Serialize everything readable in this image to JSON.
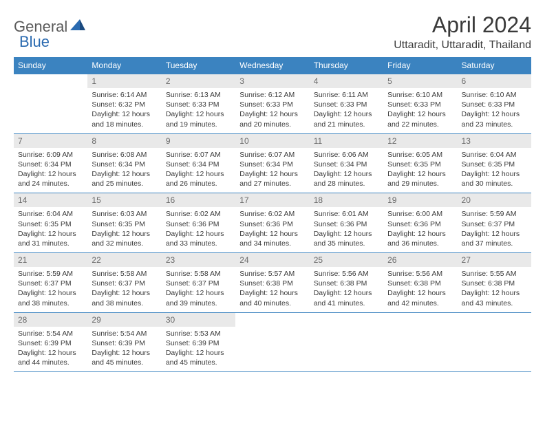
{
  "logo": {
    "text1": "General",
    "text2": "Blue"
  },
  "title": "April 2024",
  "location": "Uttaradit, Uttaradit, Thailand",
  "colors": {
    "header_bg": "#3b83c0",
    "header_text": "#ffffff",
    "daynum_bg": "#e9e9e9",
    "daynum_text": "#6a6a6a",
    "body_text": "#3a3a3a",
    "border": "#3b83c0",
    "logo_gray": "#5a5a5a",
    "logo_blue": "#2a6ab0"
  },
  "weekdays": [
    "Sunday",
    "Monday",
    "Tuesday",
    "Wednesday",
    "Thursday",
    "Friday",
    "Saturday"
  ],
  "start_offset": 1,
  "days": [
    {
      "n": 1,
      "sr": "6:14 AM",
      "ss": "6:32 PM",
      "dl": "12 hours and 18 minutes."
    },
    {
      "n": 2,
      "sr": "6:13 AM",
      "ss": "6:33 PM",
      "dl": "12 hours and 19 minutes."
    },
    {
      "n": 3,
      "sr": "6:12 AM",
      "ss": "6:33 PM",
      "dl": "12 hours and 20 minutes."
    },
    {
      "n": 4,
      "sr": "6:11 AM",
      "ss": "6:33 PM",
      "dl": "12 hours and 21 minutes."
    },
    {
      "n": 5,
      "sr": "6:10 AM",
      "ss": "6:33 PM",
      "dl": "12 hours and 22 minutes."
    },
    {
      "n": 6,
      "sr": "6:10 AM",
      "ss": "6:33 PM",
      "dl": "12 hours and 23 minutes."
    },
    {
      "n": 7,
      "sr": "6:09 AM",
      "ss": "6:34 PM",
      "dl": "12 hours and 24 minutes."
    },
    {
      "n": 8,
      "sr": "6:08 AM",
      "ss": "6:34 PM",
      "dl": "12 hours and 25 minutes."
    },
    {
      "n": 9,
      "sr": "6:07 AM",
      "ss": "6:34 PM",
      "dl": "12 hours and 26 minutes."
    },
    {
      "n": 10,
      "sr": "6:07 AM",
      "ss": "6:34 PM",
      "dl": "12 hours and 27 minutes."
    },
    {
      "n": 11,
      "sr": "6:06 AM",
      "ss": "6:34 PM",
      "dl": "12 hours and 28 minutes."
    },
    {
      "n": 12,
      "sr": "6:05 AM",
      "ss": "6:35 PM",
      "dl": "12 hours and 29 minutes."
    },
    {
      "n": 13,
      "sr": "6:04 AM",
      "ss": "6:35 PM",
      "dl": "12 hours and 30 minutes."
    },
    {
      "n": 14,
      "sr": "6:04 AM",
      "ss": "6:35 PM",
      "dl": "12 hours and 31 minutes."
    },
    {
      "n": 15,
      "sr": "6:03 AM",
      "ss": "6:35 PM",
      "dl": "12 hours and 32 minutes."
    },
    {
      "n": 16,
      "sr": "6:02 AM",
      "ss": "6:36 PM",
      "dl": "12 hours and 33 minutes."
    },
    {
      "n": 17,
      "sr": "6:02 AM",
      "ss": "6:36 PM",
      "dl": "12 hours and 34 minutes."
    },
    {
      "n": 18,
      "sr": "6:01 AM",
      "ss": "6:36 PM",
      "dl": "12 hours and 35 minutes."
    },
    {
      "n": 19,
      "sr": "6:00 AM",
      "ss": "6:36 PM",
      "dl": "12 hours and 36 minutes."
    },
    {
      "n": 20,
      "sr": "5:59 AM",
      "ss": "6:37 PM",
      "dl": "12 hours and 37 minutes."
    },
    {
      "n": 21,
      "sr": "5:59 AM",
      "ss": "6:37 PM",
      "dl": "12 hours and 38 minutes."
    },
    {
      "n": 22,
      "sr": "5:58 AM",
      "ss": "6:37 PM",
      "dl": "12 hours and 38 minutes."
    },
    {
      "n": 23,
      "sr": "5:58 AM",
      "ss": "6:37 PM",
      "dl": "12 hours and 39 minutes."
    },
    {
      "n": 24,
      "sr": "5:57 AM",
      "ss": "6:38 PM",
      "dl": "12 hours and 40 minutes."
    },
    {
      "n": 25,
      "sr": "5:56 AM",
      "ss": "6:38 PM",
      "dl": "12 hours and 41 minutes."
    },
    {
      "n": 26,
      "sr": "5:56 AM",
      "ss": "6:38 PM",
      "dl": "12 hours and 42 minutes."
    },
    {
      "n": 27,
      "sr": "5:55 AM",
      "ss": "6:38 PM",
      "dl": "12 hours and 43 minutes."
    },
    {
      "n": 28,
      "sr": "5:54 AM",
      "ss": "6:39 PM",
      "dl": "12 hours and 44 minutes."
    },
    {
      "n": 29,
      "sr": "5:54 AM",
      "ss": "6:39 PM",
      "dl": "12 hours and 45 minutes."
    },
    {
      "n": 30,
      "sr": "5:53 AM",
      "ss": "6:39 PM",
      "dl": "12 hours and 45 minutes."
    }
  ],
  "labels": {
    "sunrise": "Sunrise:",
    "sunset": "Sunset:",
    "daylight": "Daylight:"
  }
}
